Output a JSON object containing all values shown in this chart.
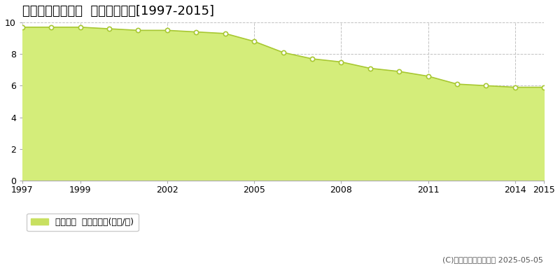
{
  "title": "北上市和賀町藤根  基準地価推移[1997-2015]",
  "years": [
    1997,
    1998,
    1999,
    2000,
    2001,
    2002,
    2003,
    2004,
    2005,
    2006,
    2007,
    2008,
    2009,
    2010,
    2011,
    2012,
    2013,
    2014,
    2015
  ],
  "values": [
    9.7,
    9.7,
    9.7,
    9.6,
    9.5,
    9.5,
    9.4,
    9.3,
    8.8,
    8.1,
    7.7,
    7.5,
    7.1,
    6.9,
    6.6,
    6.1,
    6.0,
    5.9,
    5.9
  ],
  "ylim": [
    0,
    10
  ],
  "yticks": [
    0,
    2,
    4,
    6,
    8,
    10
  ],
  "xticks": [
    1997,
    1999,
    2002,
    2005,
    2008,
    2011,
    2014,
    2015
  ],
  "fill_color": "#d4ed7a",
  "line_color": "#a8c832",
  "marker_facecolor": "#ffffff",
  "marker_edgecolor": "#a8c832",
  "grid_color": "#bbbbbb",
  "bg_color": "#ffffff",
  "plot_bg_color": "#ffffff",
  "legend_label": "基準地価  平均坪単価(万円/坪)",
  "legend_color": "#c8e060",
  "copyright_text": "(C)土地価格ドットコム 2025-05-05",
  "title_fontsize": 13,
  "tick_fontsize": 9,
  "legend_fontsize": 9
}
